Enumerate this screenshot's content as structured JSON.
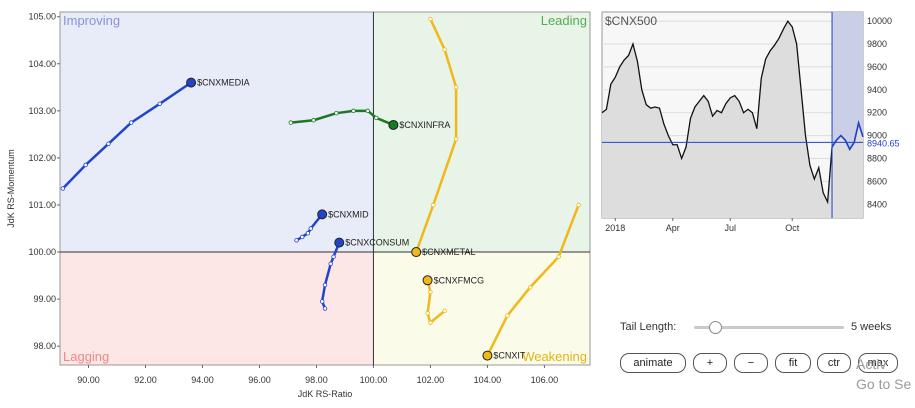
{
  "chart_data": [
    {
      "type": "scatter",
      "subtype": "relative-rotation-graph",
      "xlabel": "JdK RS-Ratio",
      "ylabel": "JdK RS-Momentum",
      "xlim": [
        89.0,
        107.6
      ],
      "ylim": [
        97.6,
        105.1
      ],
      "x_ticks": [
        "90.00",
        "92.00",
        "94.00",
        "96.00",
        "98.00",
        "100.00",
        "102.00",
        "104.00",
        "106.00"
      ],
      "y_ticks": [
        "98.00",
        "99.00",
        "100.00",
        "101.00",
        "102.00",
        "103.00",
        "104.00",
        "105.00"
      ],
      "quadrants": [
        {
          "name": "Improving",
          "color": "#e8ebf8",
          "label_color": "#8a93d8"
        },
        {
          "name": "Leading",
          "color": "#e7f4e7",
          "label_color": "#55aa55"
        },
        {
          "name": "Lagging",
          "color": "#fde6e6",
          "label_color": "#ea8a8a"
        },
        {
          "name": "Weakening",
          "color": "#fbfbea",
          "label_color": "#e0b414"
        }
      ],
      "series": [
        {
          "name": "$CNXMEDIA",
          "color": "#2244cc",
          "points": [
            [
              89.1,
              101.35
            ],
            [
              89.9,
              101.85
            ],
            [
              90.7,
              102.3
            ],
            [
              91.5,
              102.75
            ],
            [
              92.5,
              103.15
            ],
            [
              93.6,
              103.6
            ]
          ]
        },
        {
          "name": "$CNXINFRA",
          "color": "#1a7a22",
          "points": [
            [
              97.1,
              102.75
            ],
            [
              97.9,
              102.8
            ],
            [
              98.7,
              102.95
            ],
            [
              99.3,
              103.0
            ],
            [
              99.8,
              103.0
            ],
            [
              100.1,
              102.85
            ],
            [
              100.7,
              102.7
            ]
          ]
        },
        {
          "name": "$CNXMID",
          "color": "#2244cc",
          "points": [
            [
              97.3,
              100.25
            ],
            [
              97.5,
              100.32
            ],
            [
              97.7,
              100.4
            ],
            [
              97.8,
              100.5
            ],
            [
              98.2,
              100.8
            ]
          ]
        },
        {
          "name": "$CNXCONSUM",
          "color": "#2244cc",
          "points": [
            [
              98.3,
              98.8
            ],
            [
              98.2,
              98.95
            ],
            [
              98.3,
              99.3
            ],
            [
              98.5,
              99.75
            ],
            [
              98.6,
              99.9
            ],
            [
              98.8,
              100.2
            ]
          ]
        },
        {
          "name": "$CNXMETAL",
          "color": "#f0b818",
          "points": [
            [
              102.0,
              104.95
            ],
            [
              102.5,
              104.3
            ],
            [
              102.9,
              103.5
            ],
            [
              102.9,
              102.4
            ],
            [
              102.1,
              101.0
            ],
            [
              101.5,
              100.0
            ]
          ]
        },
        {
          "name": "$CNXFMCG",
          "color": "#f0b818",
          "points": [
            [
              102.5,
              98.75
            ],
            [
              102.0,
              98.5
            ],
            [
              101.9,
              98.7
            ],
            [
              102.0,
              99.15
            ],
            [
              101.9,
              99.4
            ]
          ]
        },
        {
          "name": "$CNXIT",
          "color": "#f0b818",
          "points": [
            [
              107.2,
              101.0
            ],
            [
              106.5,
              99.9
            ],
            [
              105.5,
              99.25
            ],
            [
              104.7,
              98.65
            ],
            [
              104.0,
              97.8
            ]
          ]
        }
      ]
    },
    {
      "type": "line",
      "title": "$CNX500",
      "ylim": [
        8280,
        10080
      ],
      "y_ticks": [
        "10000",
        "9800",
        "9600",
        "9400",
        "9200",
        "9000",
        "8800",
        "8600",
        "8400"
      ],
      "x_ticks": [
        "2018",
        "Apr",
        "Jul",
        "Oct"
      ],
      "last_value": "8940.65",
      "values": [
        9200,
        9230,
        9450,
        9510,
        9600,
        9660,
        9700,
        9800,
        9650,
        9400,
        9270,
        9240,
        9250,
        9240,
        9100,
        9000,
        8920,
        8920,
        8800,
        8900,
        9150,
        9250,
        9300,
        9350,
        9300,
        9170,
        9220,
        9200,
        9280,
        9330,
        9350,
        9300,
        9200,
        9230,
        9200,
        9060,
        9500,
        9670,
        9740,
        9790,
        9850,
        9930,
        10000,
        9950,
        9800,
        9400,
        9000,
        8740,
        8620,
        8720,
        8500,
        8420,
        8900,
        8960,
        9000,
        8960,
        8880,
        8940,
        9110,
        8990
      ]
    }
  ],
  "controls": {
    "tail_length_label": "Tail Length:",
    "tail_length_value": "5 weeks",
    "tail_length_fraction": 0.1,
    "buttons": [
      "animate",
      "+",
      "−",
      "fit",
      "ctr",
      "max"
    ]
  },
  "watermark": [
    "Activ",
    "Go to Se"
  ]
}
